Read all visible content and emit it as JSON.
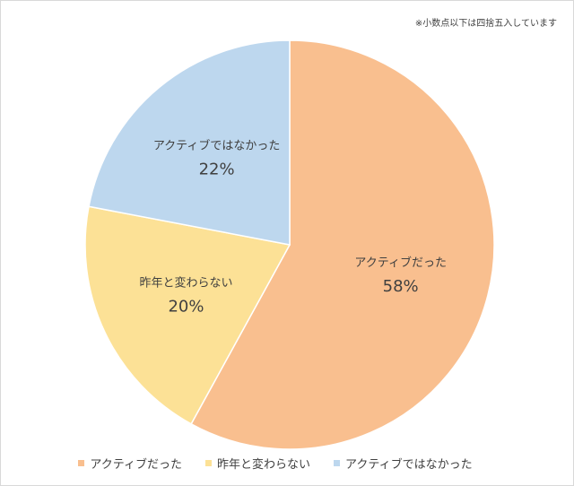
{
  "note": "※小数点以下は四捨五入しています",
  "chart_data": {
    "type": "pie",
    "categories": [
      "アクティブだった",
      "昨年と変わらない",
      "アクティブではなかった"
    ],
    "values": [
      58,
      20,
      22
    ],
    "value_labels": [
      "58%",
      "20%",
      "22%"
    ],
    "colors": [
      "#F9BF8F",
      "#FCE196",
      "#BDD7EE"
    ],
    "start_angle_deg": 0,
    "direction": "clockwise",
    "legend_position": "bottom"
  }
}
